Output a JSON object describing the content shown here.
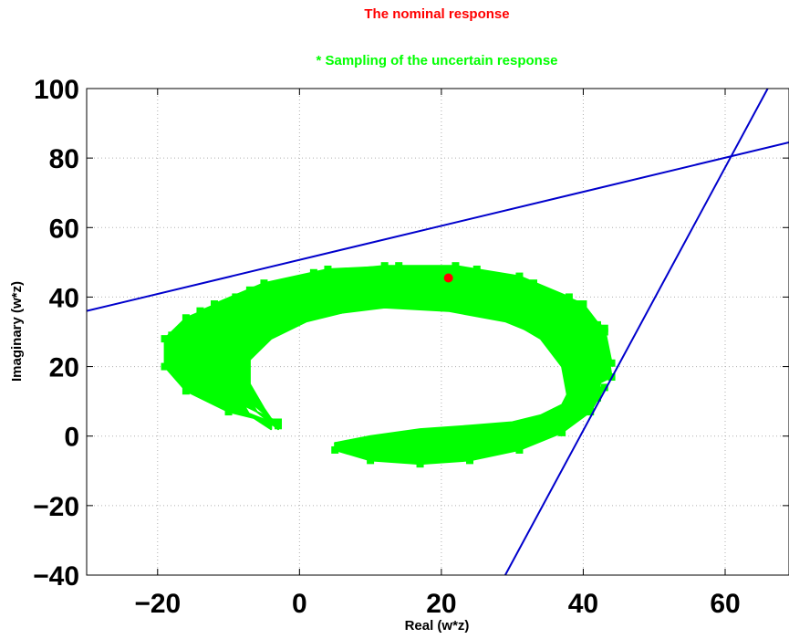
{
  "chart_data": {
    "type": "scatter",
    "title_lines": [
      {
        "text": "The nominal response",
        "color": "#ff0000"
      },
      {
        "text": "* Sampling of the uncertain response",
        "color": "#00ff00"
      }
    ],
    "xlabel": "Real (w*z)",
    "ylabel": "Imaginary (w*z)",
    "xlim": [
      -30,
      69
    ],
    "ylim": [
      -40,
      100
    ],
    "xticks": [
      -20,
      0,
      20,
      40,
      60
    ],
    "yticks": [
      -40,
      -20,
      0,
      20,
      40,
      60,
      80,
      100
    ],
    "grid": true,
    "nominal_point": {
      "x": 21,
      "y": 45.5,
      "color": "#ff0000"
    },
    "uncertain_band": {
      "color": "#00ff00",
      "arcs": [
        {
          "outer": [
            [
              -4,
              4
            ],
            [
              -10,
              7
            ],
            [
              -16,
              13
            ],
            [
              -19,
              20
            ],
            [
              -19,
              28
            ],
            [
              -16,
              34
            ],
            [
              -9,
              40
            ],
            [
              0,
              44
            ],
            [
              10,
              46
            ],
            [
              21,
              45
            ],
            [
              30,
              42
            ],
            [
              37,
              37
            ],
            [
              41,
              31
            ],
            [
              43,
              26
            ]
          ],
          "inner": [
            [
              -4,
              2
            ],
            [
              -7,
              6
            ],
            [
              -10,
              13
            ],
            [
              -10,
              20
            ],
            [
              -8,
              26
            ],
            [
              -3,
              31
            ],
            [
              4,
              35
            ],
            [
              12,
              37
            ],
            [
              21,
              36
            ],
            [
              29,
              33
            ],
            [
              35,
              28
            ],
            [
              38,
              22
            ],
            [
              39,
              20
            ]
          ]
        },
        {
          "outer": [
            [
              -4,
              4
            ],
            [
              -9,
              8
            ],
            [
              -15,
              14
            ],
            [
              -18,
              21
            ],
            [
              -18,
              29
            ],
            [
              -14,
              36
            ],
            [
              -7,
              42
            ],
            [
              2,
              46
            ],
            [
              12,
              48
            ],
            [
              23,
              47
            ],
            [
              32,
              43
            ],
            [
              39,
              38
            ],
            [
              43,
              31
            ],
            [
              44,
              21
            ]
          ],
          "inner": [
            [
              -4,
              2
            ],
            [
              -7,
              6
            ],
            [
              -9,
              13
            ],
            [
              -9,
              20
            ],
            [
              -7,
              27
            ],
            [
              -2,
              32
            ],
            [
              5,
              36
            ],
            [
              13,
              38
            ],
            [
              22,
              37
            ],
            [
              30,
              34
            ],
            [
              36,
              29
            ],
            [
              39,
              22
            ],
            [
              40,
              17
            ]
          ]
        },
        {
          "outer": [
            [
              -3,
              4
            ],
            [
              -8,
              9
            ],
            [
              -13,
              16
            ],
            [
              -17,
              23
            ],
            [
              -16,
              31
            ],
            [
              -12,
              38
            ],
            [
              -5,
              44
            ],
            [
              4,
              48
            ],
            [
              14,
              49
            ],
            [
              25,
              48
            ],
            [
              33,
              44
            ],
            [
              40,
              38
            ],
            [
              43,
              30
            ],
            [
              44,
              17
            ]
          ],
          "inner": [
            [
              -3,
              2
            ],
            [
              -6,
              7
            ],
            [
              -8,
              14
            ],
            [
              -8,
              21
            ],
            [
              -6,
              28
            ],
            [
              -1,
              33
            ],
            [
              6,
              37
            ],
            [
              14,
              39
            ],
            [
              22,
              38
            ],
            [
              30,
              35
            ],
            [
              36,
              29
            ],
            [
              39,
              21
            ],
            [
              40,
              13
            ]
          ]
        },
        {
          "outer": [
            [
              -3,
              3
            ],
            [
              -7,
              10
            ],
            [
              -11,
              18
            ],
            [
              -13,
              27
            ],
            [
              -11,
              36
            ],
            [
              -6,
              42
            ],
            [
              2,
              47
            ],
            [
              12,
              49
            ],
            [
              22,
              49
            ],
            [
              31,
              46
            ],
            [
              38,
              40
            ],
            [
              42,
              32
            ],
            [
              43,
              22
            ],
            [
              42,
              11
            ]
          ],
          "inner": [
            [
              -3,
              2
            ],
            [
              -5,
              8
            ],
            [
              -7,
              15
            ],
            [
              -7,
              22
            ],
            [
              -4,
              28
            ],
            [
              1,
              33
            ],
            [
              7,
              36
            ],
            [
              14,
              38
            ],
            [
              22,
              37
            ],
            [
              29,
              34
            ],
            [
              34,
              28
            ],
            [
              37,
              20
            ],
            [
              38,
              9
            ]
          ]
        },
        {
          "outer": [
            [
              9,
              -2
            ],
            [
              16,
              -4
            ],
            [
              24,
              -4
            ],
            [
              31,
              -2
            ],
            [
              36,
              2
            ],
            [
              40,
              7
            ],
            [
              42,
              13
            ],
            [
              42,
              19
            ]
          ],
          "inner": [
            [
              5,
              -2
            ],
            [
              10,
              0
            ],
            [
              17,
              2
            ],
            [
              24,
              3
            ],
            [
              30,
              4
            ],
            [
              34,
              6
            ],
            [
              37,
              9
            ],
            [
              38,
              13
            ]
          ]
        },
        {
          "outer": [
            [
              5,
              -4
            ],
            [
              10,
              -7
            ],
            [
              17,
              -8
            ],
            [
              24,
              -7
            ],
            [
              31,
              -4
            ],
            [
              37,
              1
            ],
            [
              41,
              7
            ],
            [
              43,
              14
            ]
          ],
          "inner": [
            [
              5,
              -2
            ],
            [
              11,
              -2
            ],
            [
              18,
              -1
            ],
            [
              25,
              0
            ],
            [
              31,
              2
            ],
            [
              35,
              5
            ],
            [
              38,
              9
            ],
            [
              39,
              14
            ]
          ]
        }
      ]
    },
    "lines": [
      {
        "color": "#0000cc",
        "points": [
          [
            -30,
            36
          ],
          [
            69,
            84.5
          ]
        ]
      },
      {
        "color": "#0000cc",
        "points": [
          [
            29,
            -40
          ],
          [
            66,
            100
          ]
        ]
      }
    ]
  }
}
